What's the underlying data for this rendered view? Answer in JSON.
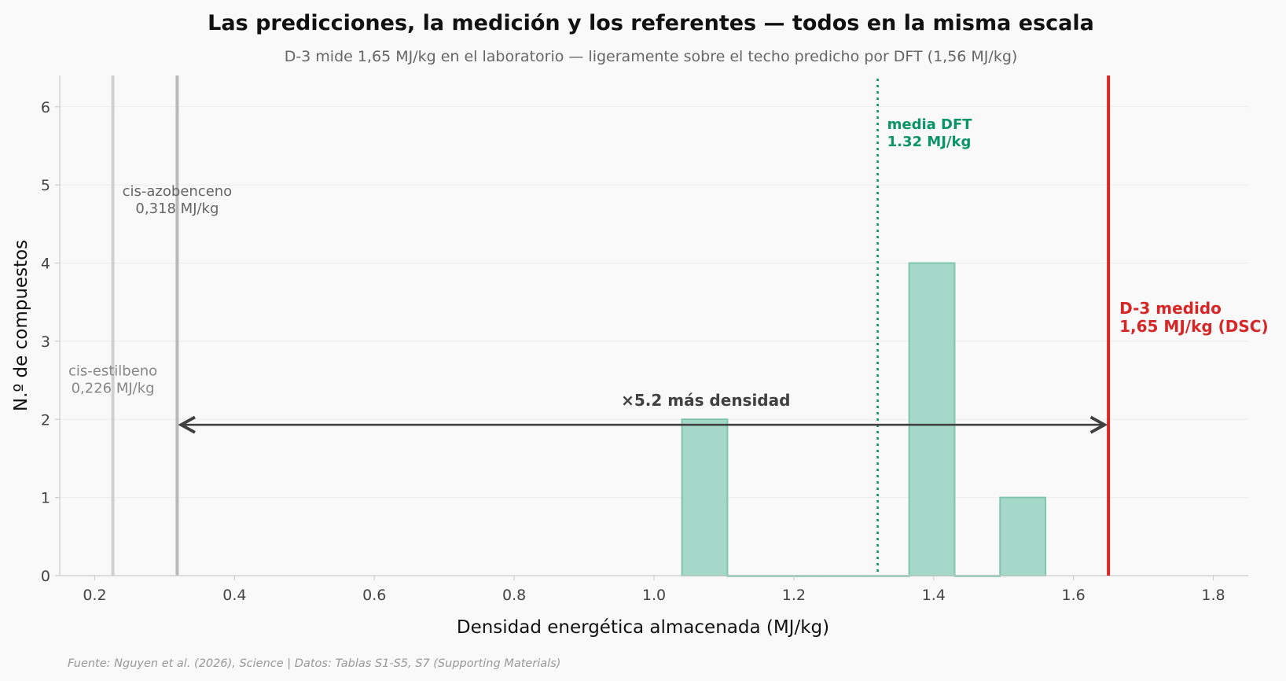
{
  "title": "Las predicciones, la medición y los referentes — todos en la misma escala",
  "subtitle": "D-3 mide 1,65 MJ/kg en el laboratorio — ligeramente sobre el techo predicho por DFT (1,56 MJ/kg)",
  "source": "Fuente: Nguyen et al. (2026), Science | Datos: Tablas S1-S5, S7 (Supporting Materials)",
  "colors": {
    "bar_fill": "#a5d8c8",
    "bar_stroke": "#7fc6ae",
    "dft": "#0a9468",
    "measured": "#d62728",
    "ref1": "#d0d0d0",
    "ref2": "#b8b8b8",
    "arrow": "#404040",
    "grid": "#ebebeb"
  },
  "chart_data": {
    "type": "bar",
    "subtype": "histogram",
    "xlabel": "Densidad energética almacenada (MJ/kg)",
    "ylabel": "N.º de compuestos",
    "xlim": [
      0.15,
      1.85
    ],
    "ylim": [
      0,
      6.4
    ],
    "xticks": [
      0.2,
      0.4,
      0.6,
      0.8,
      1.0,
      1.2,
      1.4,
      1.6,
      1.8
    ],
    "xtick_labels": [
      "0.2",
      "0.4",
      "0.6",
      "0.8",
      "1.0",
      "1.2",
      "1.4",
      "1.6",
      "1.8"
    ],
    "yticks": [
      0,
      1,
      2,
      3,
      4,
      5,
      6
    ],
    "ytick_labels": [
      "0",
      "1",
      "2",
      "3",
      "4",
      "5",
      "6"
    ],
    "grid": "horizontal",
    "bins": [
      {
        "x0": 1.04,
        "x1": 1.105,
        "count": 2
      },
      {
        "x0": 1.105,
        "x1": 1.17,
        "count": 0
      },
      {
        "x0": 1.17,
        "x1": 1.235,
        "count": 0
      },
      {
        "x0": 1.235,
        "x1": 1.3,
        "count": 0
      },
      {
        "x0": 1.3,
        "x1": 1.365,
        "count": 0
      },
      {
        "x0": 1.365,
        "x1": 1.43,
        "count": 4
      },
      {
        "x0": 1.43,
        "x1": 1.495,
        "count": 0
      },
      {
        "x0": 1.495,
        "x1": 1.56,
        "count": 1
      }
    ],
    "reference_lines": [
      {
        "id": "cis-estilbeno",
        "x": 0.226,
        "label_line1": "cis-estilbeno",
        "label_line2": "0,226 MJ/kg",
        "label_y": 2.5
      },
      {
        "id": "cis-azobenceno",
        "x": 0.318,
        "label_line1": "cis-azobenceno",
        "label_line2": "0,318 MJ/kg",
        "label_y": 4.8
      }
    ],
    "dft_mean": {
      "x": 1.32,
      "label_line1": "media DFT",
      "label_line2": "1.32 MJ/kg"
    },
    "measured": {
      "x": 1.65,
      "label_line1": "D-3 medido",
      "label_line2": "1,65 MJ/kg (DSC)"
    },
    "arrow": {
      "from_x": 0.318,
      "to_x": 1.65,
      "y": 1.93,
      "label": "×5.2 más densidad"
    }
  }
}
